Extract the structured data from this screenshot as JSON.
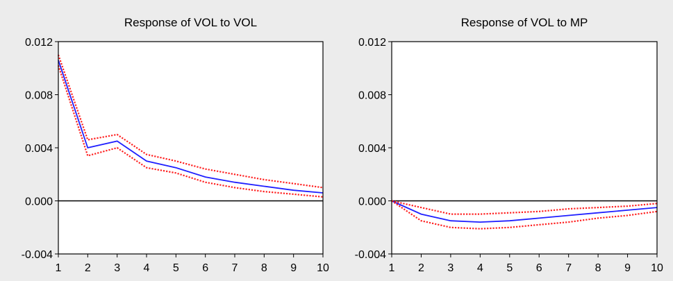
{
  "chart_data": [
    {
      "type": "line",
      "title": "Response of VOL to VOL",
      "xlabel": "",
      "ylabel": "",
      "x": [
        1,
        2,
        3,
        4,
        5,
        6,
        7,
        8,
        9,
        10
      ],
      "xticks": [
        "1",
        "2",
        "3",
        "4",
        "5",
        "6",
        "7",
        "8",
        "9",
        "10"
      ],
      "ylim": [
        -0.004,
        0.012
      ],
      "yticks": [
        "0.012",
        "0.008",
        "0.004",
        "0.000",
        "-0.004"
      ],
      "ytick_values": [
        0.012,
        0.008,
        0.004,
        0.0,
        -0.004
      ],
      "zero_line": true,
      "grid": false,
      "series": [
        {
          "role": "response",
          "style": "solid",
          "color": "#1f1fff",
          "values": [
            0.0106,
            0.004,
            0.0045,
            0.003,
            0.0025,
            0.0018,
            0.0014,
            0.0011,
            0.0008,
            0.0006
          ]
        },
        {
          "role": "upper",
          "style": "dotted",
          "color": "#ff2020",
          "values": [
            0.011,
            0.0046,
            0.005,
            0.0035,
            0.003,
            0.0024,
            0.002,
            0.0016,
            0.0013,
            0.001
          ]
        },
        {
          "role": "lower",
          "style": "dotted",
          "color": "#ff2020",
          "values": [
            0.0102,
            0.0034,
            0.004,
            0.0025,
            0.0021,
            0.0014,
            0.001,
            0.0007,
            0.0005,
            0.0003
          ]
        }
      ]
    },
    {
      "type": "line",
      "title": "Response of VOL to MP",
      "xlabel": "",
      "ylabel": "",
      "x": [
        1,
        2,
        3,
        4,
        5,
        6,
        7,
        8,
        9,
        10
      ],
      "xticks": [
        "1",
        "2",
        "3",
        "4",
        "5",
        "6",
        "7",
        "8",
        "9",
        "10"
      ],
      "ylim": [
        -0.004,
        0.012
      ],
      "yticks": [
        "0.012",
        "0.008",
        "0.004",
        "0.000",
        "-0.004"
      ],
      "ytick_values": [
        0.012,
        0.008,
        0.004,
        0.0,
        -0.004
      ],
      "zero_line": true,
      "grid": false,
      "series": [
        {
          "role": "response",
          "style": "solid",
          "color": "#1f1fff",
          "values": [
            0.0,
            -0.001,
            -0.0015,
            -0.0016,
            -0.0015,
            -0.0013,
            -0.0011,
            -0.0009,
            -0.0007,
            -0.0005
          ]
        },
        {
          "role": "upper",
          "style": "dotted",
          "color": "#ff2020",
          "values": [
            0.0,
            -0.0005,
            -0.001,
            -0.001,
            -0.0009,
            -0.0008,
            -0.0006,
            -0.0005,
            -0.0004,
            -0.0002
          ]
        },
        {
          "role": "lower",
          "style": "dotted",
          "color": "#ff2020",
          "values": [
            0.0,
            -0.0015,
            -0.002,
            -0.0021,
            -0.002,
            -0.0018,
            -0.0016,
            -0.0013,
            -0.0011,
            -0.0008
          ]
        }
      ]
    }
  ]
}
